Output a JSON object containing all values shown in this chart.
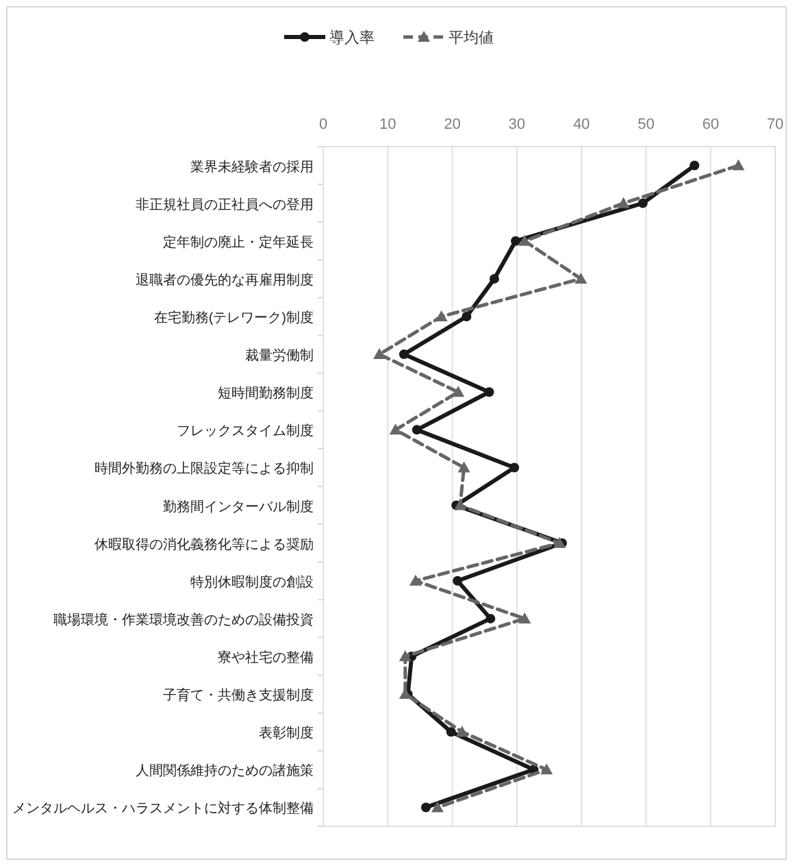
{
  "chart_data": {
    "type": "line",
    "orientation": "horizontal",
    "categories": [
      "業界未経験者の採用",
      "非正規社員の正社員への登用",
      "定年制の廃止・定年延長",
      "退職者の優先的な再雇用制度",
      "在宅勤務(テレワーク)制度",
      "裁量労働制",
      "短時間勤務制度",
      "フレックスタイム制度",
      "時間外勤務の上限設定等による抑制",
      "勤務間インターバル制度",
      "休暇取得の消化義務化等による奨励",
      "特別休暇制度の創設",
      "職場環境・作業環境改善のための設備投資",
      "寮や社宅の整備",
      "子育て・共働き支援制度",
      "表彰制度",
      "人間関係維持のための諸施策",
      "メンタルヘルス・ハラスメントに対する体制整備"
    ],
    "series": [
      {
        "name": "導入率",
        "color": "#1a1a1a",
        "marker": "circle",
        "line_style": "solid",
        "values": [
          57.5,
          49.5,
          29.8,
          26.5,
          22.2,
          12.5,
          25.7,
          14.5,
          29.6,
          20.6,
          37,
          20.8,
          25.9,
          13.7,
          13.1,
          19.8,
          32.6,
          15.9
        ]
      },
      {
        "name": "平均値",
        "color": "#666666",
        "marker": "triangle",
        "line_style": "dashed",
        "values": [
          64.3,
          46.5,
          31.2,
          39.9,
          18.3,
          8.7,
          20.9,
          11.2,
          21.8,
          21.2,
          36.6,
          14.3,
          31.2,
          12.7,
          12.7,
          21.5,
          34.6,
          17.7
        ]
      }
    ],
    "xlim": [
      0,
      70
    ],
    "xticks": [
      0,
      10,
      20,
      30,
      40,
      50,
      60,
      70
    ],
    "grid": "x",
    "legend": "top"
  }
}
